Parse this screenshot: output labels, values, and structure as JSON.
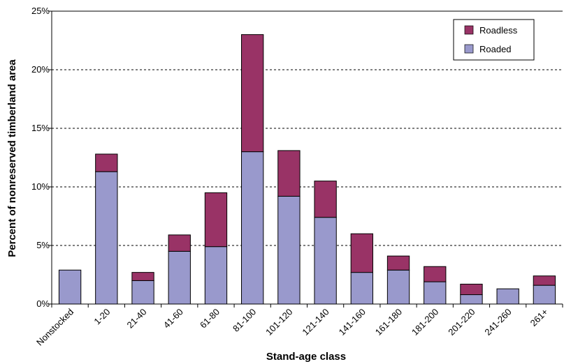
{
  "chart_data": {
    "type": "bar",
    "stacked": true,
    "xlabel": "Stand-age class",
    "ylabel": "Percent of nonreserved timberland area",
    "ylim": [
      0,
      25
    ],
    "yticks": [
      0,
      5,
      10,
      15,
      20,
      25
    ],
    "ytick_labels": [
      "0%",
      "5%",
      "10%",
      "15%",
      "20%",
      "25%"
    ],
    "grid": "horizontal dotted",
    "legend_position": "top-right",
    "categories": [
      "Nonstocked",
      "1-20",
      "21-40",
      "41-60",
      "61-80",
      "81-100",
      "101-120",
      "121-140",
      "141-160",
      "161-180",
      "181-200",
      "201-220",
      "241-260",
      "261+"
    ],
    "series": [
      {
        "name": "Roaded",
        "color": "#9999cc",
        "values": [
          2.9,
          11.3,
          2.0,
          4.5,
          4.9,
          13.0,
          9.2,
          7.4,
          2.7,
          2.9,
          1.9,
          0.8,
          1.3,
          1.6
        ]
      },
      {
        "name": "Roadless",
        "color": "#993366",
        "values": [
          0.0,
          1.5,
          0.7,
          1.4,
          4.6,
          10.0,
          3.9,
          3.1,
          3.3,
          1.2,
          1.3,
          0.9,
          0.0,
          0.8
        ]
      }
    ],
    "legend_order": [
      "Roadless",
      "Roaded"
    ]
  }
}
